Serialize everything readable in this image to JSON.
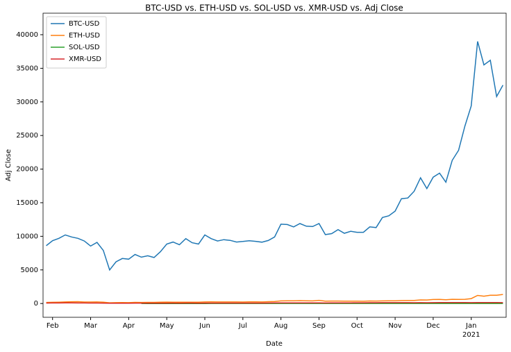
{
  "chart_data": {
    "type": "line",
    "title": "BTC-USD vs. ETH-USD vs. SOL-USD vs. XMR-USD vs. Adj Close",
    "x_label": "Date",
    "y_label": "Adj Close",
    "categories": [
      null,
      "Feb",
      null,
      null,
      null,
      null,
      null,
      "Mar",
      null,
      null,
      null,
      null,
      null,
      "Apr",
      null,
      null,
      null,
      null,
      null,
      "May",
      null,
      null,
      null,
      null,
      null,
      "Jun",
      null,
      null,
      null,
      null,
      null,
      "Jul",
      null,
      null,
      null,
      null,
      null,
      "Aug",
      null,
      null,
      null,
      null,
      null,
      "Sep",
      null,
      null,
      null,
      null,
      null,
      "Oct",
      null,
      null,
      null,
      null,
      null,
      "Nov",
      null,
      null,
      null,
      null,
      null,
      "Dec",
      null,
      null,
      null,
      null,
      null,
      "Jan",
      null,
      null,
      null,
      null,
      null
    ],
    "year_label": "2021",
    "ylim": [
      -2050,
      43200
    ],
    "yticks": [
      0,
      5000,
      10000,
      15000,
      20000,
      25000,
      30000,
      35000,
      40000
    ],
    "legend": "upper left",
    "grid": false,
    "series": [
      {
        "name": "BTC-USD",
        "color": "#1f77b4",
        "values": [
          8600,
          9350,
          9700,
          10200,
          9900,
          9700,
          9300,
          8550,
          9100,
          7900,
          5000,
          6200,
          6700,
          6600,
          7300,
          6900,
          7100,
          6850,
          7700,
          8850,
          9150,
          8750,
          9650,
          9050,
          8850,
          10200,
          9650,
          9300,
          9500,
          9400,
          9150,
          9230,
          9350,
          9250,
          9130,
          9380,
          9900,
          11800,
          11750,
          11400,
          11900,
          11500,
          11450,
          11900,
          10250,
          10400,
          11000,
          10450,
          10750,
          10600,
          10600,
          11400,
          11300,
          12800,
          13050,
          13750,
          15600,
          15700,
          16700,
          18700,
          17100,
          18800,
          19400,
          18050,
          21300,
          22800,
          26400,
          29400,
          39000,
          35500,
          36200,
          30800,
          32500
        ]
      },
      {
        "name": "ETH-USD",
        "color": "#ff7f0e",
        "values": [
          160,
          180,
          205,
          235,
          265,
          270,
          225,
          218,
          228,
          195,
          110,
          125,
          138,
          135,
          170,
          160,
          170,
          170,
          195,
          215,
          205,
          187,
          200,
          200,
          205,
          232,
          245,
          230,
          235,
          230,
          230,
          225,
          240,
          240,
          235,
          275,
          310,
          390,
          395,
          395,
          430,
          405,
          385,
          475,
          355,
          370,
          365,
          345,
          355,
          350,
          340,
          375,
          365,
          390,
          395,
          395,
          440,
          460,
          460,
          530,
          520,
          590,
          600,
          560,
          630,
          605,
          630,
          730,
          1200,
          1090,
          1230,
          1230,
          1350
        ]
      },
      {
        "name": "SOL-USD",
        "color": "#2ca02c",
        "values": [
          null,
          null,
          null,
          null,
          null,
          null,
          null,
          null,
          null,
          null,
          null,
          null,
          null,
          null,
          null,
          0.95,
          0.7,
          0.6,
          0.65,
          0.6,
          0.6,
          0.55,
          0.7,
          0.6,
          0.6,
          0.7,
          0.8,
          0.9,
          1.2,
          1.1,
          1.3,
          1.5,
          1.2,
          1.5,
          1.3,
          1.5,
          2.8,
          3.8,
          4.1,
          3.5,
          3.6,
          4.0,
          4.5,
          4.5,
          3.4,
          3.0,
          3.5,
          3.0,
          2.9,
          2.6,
          2.5,
          2.9,
          2.6,
          2.4,
          1.5,
          1.7,
          2.1,
          2.1,
          2.2,
          2.6,
          2.2,
          2.2,
          1.8,
          1.4,
          1.6,
          1.4,
          1.3,
          1.8,
          4.0,
          3.5,
          4.0,
          4.5,
          4.0
        ]
      },
      {
        "name": "XMR-USD",
        "color": "#d62728",
        "values": [
          64,
          75,
          80,
          88,
          86,
          80,
          75,
          68,
          70,
          57,
          40,
          45,
          48,
          47,
          55,
          58,
          61,
          58,
          62,
          62,
          63,
          60,
          65,
          67,
          62,
          67,
          69,
          65,
          64,
          64,
          63,
          68,
          73,
          72,
          72,
          76,
          85,
          95,
          94,
          90,
          100,
          96,
          92,
          97,
          80,
          85,
          92,
          92,
          96,
          107,
          110,
          120,
          120,
          130,
          125,
          130,
          130,
          127,
          120,
          125,
          120,
          125,
          140,
          145,
          150,
          155,
          140,
          130,
          150,
          148,
          150,
          140,
          133
        ]
      }
    ]
  }
}
